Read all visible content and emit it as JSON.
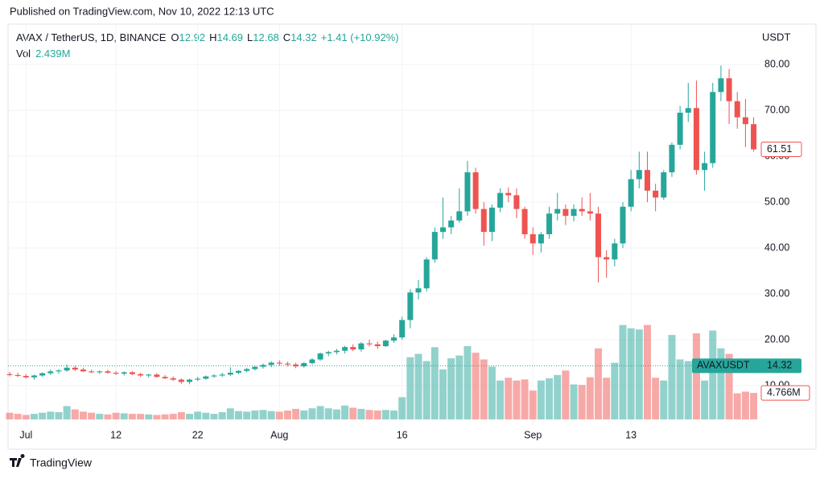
{
  "published": "Published on TradingView.com, Nov 10, 2022 12:13 UTC",
  "brand": "TradingView",
  "chart_data": {
    "type": "candlestick",
    "legend": {
      "symbol": "AVAX / TetherUS, 1D, BINANCE",
      "fields": [
        {
          "label": "O",
          "value": 12.92
        },
        {
          "label": "H",
          "value": 14.69
        },
        {
          "label": "L",
          "value": 12.68
        },
        {
          "label": "C",
          "value": 14.32
        }
      ],
      "change": "+1.41 (+10.92%)",
      "volume_label": "Vol",
      "volume": "2.439M"
    },
    "y_axis_label": "USDT",
    "up_color": "#26a69a",
    "down_color": "#ef5350",
    "grid": true,
    "categories": [
      null,
      null,
      "Jul",
      null,
      null,
      null,
      null,
      null,
      null,
      null,
      null,
      null,
      null,
      "12",
      null,
      null,
      null,
      null,
      null,
      null,
      null,
      null,
      null,
      "22",
      null,
      null,
      null,
      null,
      null,
      null,
      null,
      null,
      null,
      "Aug",
      null,
      null,
      null,
      null,
      null,
      null,
      null,
      null,
      null,
      null,
      null,
      null,
      null,
      null,
      "16",
      null,
      null,
      null,
      null,
      null,
      null,
      null,
      null,
      null,
      null,
      null,
      null,
      null,
      null,
      null,
      "Sep",
      null,
      null,
      null,
      null,
      null,
      null,
      null,
      null,
      null,
      null,
      null,
      "13",
      null,
      null,
      null,
      null,
      null,
      null,
      null,
      null,
      null,
      null,
      null,
      null,
      null,
      null,
      null
    ],
    "open": [
      12.5,
      12.3,
      12.1,
      11.8,
      12.2,
      12.7,
      13.1,
      13.3,
      13.9,
      13.5,
      13.1,
      12.9,
      13.1,
      12.8,
      12.6,
      12.9,
      12.5,
      12.2,
      12.4,
      11.9,
      11.6,
      11.3,
      10.8,
      11.3,
      11.5,
      12.0,
      12.2,
      12.4,
      12.8,
      13.2,
      13.6,
      14.1,
      14.5,
      15.0,
      14.8,
      14.6,
      14.2,
      14.9,
      15.7,
      17.0,
      17.3,
      17.6,
      18.4,
      17.9,
      19.2,
      19.0,
      18.6,
      19.8,
      20.5,
      24.3,
      30.3,
      31.2,
      37.5,
      43.5,
      44.5,
      46.0,
      48.0,
      56.5,
      48.5,
      43.5,
      48.8,
      52.0,
      51.5,
      48.5,
      43.0,
      41.0,
      43.0,
      47.5,
      48.5,
      47.0,
      48.5,
      48.0,
      47.5,
      38.0,
      37.5,
      41.0,
      49.0,
      55.0,
      57.0,
      52.5,
      51.0,
      56.5,
      62.5,
      69.5,
      70.5,
      57.0,
      58.5,
      74.0,
      77.0,
      72.0,
      68.5,
      67.0
    ],
    "high": [
      13.0,
      12.8,
      12.5,
      12.4,
      12.9,
      13.5,
      13.6,
      14.6,
      14.3,
      13.9,
      13.5,
      13.3,
      13.5,
      13.2,
      13.1,
      13.2,
      12.8,
      12.6,
      12.7,
      12.3,
      12.0,
      11.6,
      11.5,
      11.9,
      12.2,
      12.5,
      12.8,
      14.0,
      13.4,
      13.9,
      14.3,
      14.8,
      15.3,
      15.5,
      15.2,
      15.0,
      15.1,
      16.0,
      17.2,
      17.6,
      18.0,
      18.7,
      19.0,
      19.5,
      20.0,
      19.6,
      20.0,
      21.2,
      25.0,
      31.0,
      33.0,
      38.0,
      44.5,
      51.0,
      47.0,
      53.0,
      59.0,
      57.5,
      50.0,
      49.5,
      53.0,
      53.2,
      53.0,
      49.0,
      44.5,
      43.5,
      49.0,
      52.0,
      49.5,
      49.5,
      51.0,
      52.0,
      49.0,
      39.5,
      42.0,
      50.0,
      57.0,
      61.0,
      61.0,
      54.0,
      57.0,
      63.0,
      71.0,
      76.0,
      76.5,
      61.0,
      76.0,
      79.8,
      79.0,
      74.0,
      72.5,
      68.5
    ],
    "low": [
      12.0,
      11.9,
      11.5,
      11.3,
      11.9,
      12.3,
      12.6,
      13.0,
      13.2,
      13.0,
      12.7,
      12.5,
      12.6,
      12.3,
      12.2,
      12.3,
      11.9,
      11.8,
      11.7,
      11.4,
      11.0,
      10.4,
      10.3,
      11.0,
      11.3,
      11.7,
      11.9,
      12.1,
      12.5,
      12.9,
      13.3,
      13.7,
      14.0,
      14.3,
      14.2,
      13.8,
      13.9,
      14.6,
      15.4,
      16.4,
      16.8,
      17.0,
      17.5,
      17.4,
      18.5,
      18.0,
      18.4,
      19.3,
      20.0,
      22.5,
      28.8,
      30.5,
      36.8,
      42.0,
      43.0,
      45.5,
      47.0,
      47.5,
      40.5,
      41.5,
      47.8,
      50.0,
      46.5,
      42.0,
      38.5,
      39.0,
      42.0,
      46.0,
      45.0,
      45.8,
      47.0,
      46.0,
      32.5,
      33.5,
      36.0,
      40.0,
      48.0,
      53.0,
      50.0,
      48.0,
      50.5,
      55.5,
      61.5,
      67.5,
      56.0,
      52.5,
      57.5,
      72.0,
      67.0,
      66.0,
      62.0,
      61.0
    ],
    "close": [
      12.3,
      12.1,
      11.8,
      12.2,
      12.7,
      13.1,
      13.3,
      13.9,
      13.5,
      13.1,
      12.9,
      13.1,
      12.8,
      12.6,
      12.9,
      12.5,
      12.2,
      12.4,
      11.9,
      11.6,
      11.3,
      10.8,
      11.3,
      11.5,
      12.0,
      12.2,
      12.4,
      12.8,
      13.2,
      13.6,
      14.1,
      14.5,
      15.0,
      14.8,
      14.6,
      14.2,
      14.9,
      15.7,
      17.0,
      17.3,
      17.6,
      18.4,
      17.9,
      19.2,
      19.0,
      18.6,
      19.8,
      20.5,
      24.3,
      30.3,
      31.2,
      37.5,
      43.5,
      44.5,
      46.0,
      48.0,
      56.5,
      48.5,
      43.5,
      48.8,
      52.0,
      51.5,
      48.5,
      43.0,
      41.0,
      43.0,
      47.5,
      48.5,
      47.0,
      48.5,
      48.0,
      47.5,
      38.0,
      37.5,
      41.0,
      49.0,
      55.0,
      57.0,
      52.5,
      51.0,
      56.5,
      62.5,
      69.5,
      70.5,
      57.0,
      58.5,
      74.0,
      77.0,
      72.0,
      68.5,
      67.0,
      61.51
    ],
    "volume": [
      1.2,
      1.0,
      0.8,
      1.0,
      1.2,
      1.4,
      1.3,
      2.4,
      1.8,
      1.4,
      1.2,
      1.0,
      0.9,
      1.2,
      1.1,
      1.0,
      1.0,
      0.9,
      0.8,
      0.9,
      1.0,
      1.3,
      1.0,
      1.4,
      1.2,
      1.0,
      1.3,
      2.0,
      1.5,
      1.4,
      1.6,
      1.7,
      1.5,
      1.4,
      1.6,
      1.9,
      1.6,
      2.0,
      2.4,
      2.0,
      1.8,
      2.5,
      2.1,
      1.9,
      1.7,
      1.6,
      1.7,
      1.6,
      4.0,
      11.2,
      11.8,
      10.5,
      13.0,
      9.0,
      11.0,
      11.5,
      13.2,
      12.0,
      10.8,
      9.5,
      7.0,
      7.5,
      7.0,
      7.2,
      5.2,
      7.0,
      7.4,
      8.0,
      8.8,
      6.3,
      6.2,
      7.6,
      12.8,
      7.5,
      10.2,
      17.0,
      16.4,
      16.2,
      17.0,
      7.5,
      7.0,
      15.2,
      10.8,
      10.5,
      15.5,
      7.0,
      16.0,
      12.8,
      11.8,
      4.7,
      5.0,
      4.766
    ],
    "ylim": [
      1.05,
      88.8
    ],
    "yticks": [
      {
        "value": 10,
        "label": "10.00"
      },
      {
        "value": 20,
        "label": "20.00"
      },
      {
        "value": 30,
        "label": "30.00"
      },
      {
        "value": 40,
        "label": "40.00"
      },
      {
        "value": 50,
        "label": "50.00"
      },
      {
        "value": 60,
        "label": "60.00"
      },
      {
        "value": 70,
        "label": "70.00"
      },
      {
        "value": 80,
        "label": "80.00"
      }
    ],
    "volume_lim": [
      0,
      20
    ],
    "last_price": {
      "value": 61.51,
      "label": "61.51"
    },
    "current_price": {
      "name": "AVAXUSDT",
      "value": 14.32,
      "label": "14.32"
    },
    "last_volume": {
      "value": 4.766,
      "label": "4.766M"
    }
  }
}
